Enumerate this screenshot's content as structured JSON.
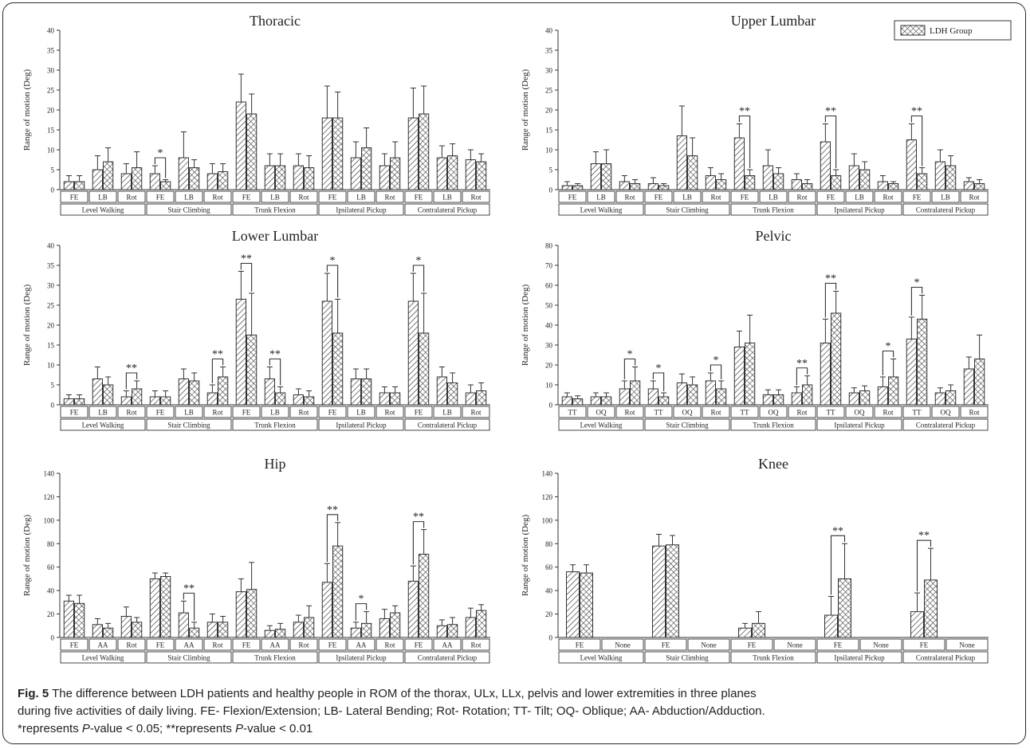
{
  "legend": {
    "label": "LDH Group"
  },
  "caption": {
    "fig_label": "Fig. 5",
    "line1": "The difference between LDH patients and healthy people in ROM of the thorax, ULx, LLx, pelvis and lower extremities in three planes",
    "line2": "during five activities of daily living. FE- Flexion/Extension; LB- Lateral Bending; Rot- Rotation; TT- Tilt; OQ- Oblique; AA- Abduction/Adduction.",
    "line3a": "*represents ",
    "line3_p1": "P",
    "line3b": "-value < 0.05; **represents ",
    "line3_p2": "P",
    "line3c": "-value < 0.01"
  },
  "chart_data": [
    {
      "type": "bar",
      "title": "Thoracic",
      "ylabel": "Range of motion (Deg)",
      "ylim": [
        0,
        40
      ],
      "yticks": [
        0,
        5,
        10,
        15,
        20,
        25,
        30,
        35,
        40
      ],
      "activities": [
        "Level Walking",
        "Stair Climbing",
        "Trunk Flexion",
        "Ipsilateral Pickup",
        "Contralateral Pickup"
      ],
      "categories": [
        "FE",
        "LB",
        "Rot",
        "FE",
        "LB",
        "Rot",
        "FE",
        "LB",
        "Rot",
        "FE",
        "LB",
        "Rot",
        "FE",
        "LB",
        "Rot"
      ],
      "series": [
        {
          "name": "",
          "values": [
            2,
            5,
            4,
            4,
            8,
            4,
            22,
            6,
            6,
            18,
            8,
            6,
            18,
            8,
            7.5
          ],
          "errors": [
            1.5,
            3.5,
            2.5,
            2,
            6.5,
            2.5,
            7,
            3,
            3,
            8,
            4,
            3,
            7.5,
            3,
            2.5
          ]
        },
        {
          "name": "LDH Group",
          "values": [
            2,
            7,
            5.5,
            2,
            5.5,
            4.5,
            19,
            6,
            5.5,
            18,
            10.5,
            8,
            19,
            8.5,
            7
          ],
          "errors": [
            1.5,
            3.5,
            4,
            0.5,
            2,
            2,
            5,
            3,
            3,
            6.5,
            5,
            4,
            7,
            3,
            2
          ]
        }
      ],
      "significance": [
        {
          "index": 3,
          "label": "*"
        }
      ]
    },
    {
      "type": "bar",
      "title": "Upper Lumbar",
      "ylabel": "Range of motion (Deg)",
      "ylim": [
        0,
        40
      ],
      "yticks": [
        0,
        5,
        10,
        15,
        20,
        25,
        30,
        35,
        40
      ],
      "activities": [
        "Level Walking",
        "Stair Climbing",
        "Trunk Flexion",
        "Ipsilateral Pickup",
        "Contralateral Pickup"
      ],
      "categories": [
        "FE",
        "LB",
        "Rot",
        "FE",
        "LB",
        "Rot",
        "FE",
        "LB",
        "Rot",
        "FE",
        "LB",
        "Rot",
        "FE",
        "LB",
        "Rot"
      ],
      "series": [
        {
          "name": "",
          "values": [
            1,
            6.5,
            2,
            1.5,
            13.5,
            3.5,
            13,
            6,
            2.5,
            12,
            6,
            2,
            12.5,
            7,
            2
          ],
          "errors": [
            1,
            3,
            1.5,
            1.5,
            7.5,
            2,
            3.5,
            4,
            1.5,
            4.5,
            3,
            1.5,
            4,
            3,
            1
          ]
        },
        {
          "name": "LDH Group",
          "values": [
            1,
            6.5,
            1.5,
            1,
            8.5,
            2.5,
            3.5,
            4,
            1.5,
            3.5,
            5,
            1.5,
            4,
            6,
            1.5
          ],
          "errors": [
            0.5,
            3.5,
            1,
            0.5,
            4.5,
            1.5,
            1.5,
            1.5,
            1,
            1.5,
            2,
            0.5,
            1.5,
            2.5,
            1
          ]
        }
      ],
      "significance": [
        {
          "index": 6,
          "label": "**"
        },
        {
          "index": 9,
          "label": "**"
        },
        {
          "index": 12,
          "label": "**"
        }
      ]
    },
    {
      "type": "bar",
      "title": "Lower Lumbar",
      "ylabel": "Range of motion (Deg)",
      "ylim": [
        0,
        40
      ],
      "yticks": [
        0,
        5,
        10,
        15,
        20,
        25,
        30,
        35,
        40
      ],
      "activities": [
        "Level Walking",
        "Stair Climbing",
        "Trunk Flexion",
        "Ipsilateral Pickup",
        "Contralateral Pickup"
      ],
      "categories": [
        "FE",
        "LB",
        "Rot",
        "FE",
        "LB",
        "Rot",
        "FE",
        "LB",
        "Rot",
        "FE",
        "LB",
        "Rot",
        "FE",
        "LB",
        "Rot"
      ],
      "series": [
        {
          "name": "",
          "values": [
            1.5,
            6.5,
            2,
            2,
            6.5,
            3,
            26.5,
            6.5,
            2.5,
            26,
            6.5,
            3,
            26,
            7,
            3
          ],
          "errors": [
            1,
            3,
            1.5,
            1.5,
            2.5,
            2,
            7,
            3,
            1.5,
            7,
            2.5,
            1.5,
            7,
            2.5,
            2
          ]
        },
        {
          "name": "LDH Group",
          "values": [
            1.5,
            5,
            4,
            2,
            6,
            7,
            17.5,
            3,
            2,
            18,
            6.5,
            3,
            18,
            5.5,
            3.5
          ],
          "errors": [
            1,
            2,
            2,
            1.5,
            2,
            2.5,
            10.5,
            1.5,
            1.5,
            8.5,
            2.5,
            1.5,
            10,
            2.5,
            2
          ]
        }
      ],
      "significance": [
        {
          "index": 2,
          "label": "**"
        },
        {
          "index": 5,
          "label": "**"
        },
        {
          "index": 6,
          "label": "**"
        },
        {
          "index": 7,
          "label": "**"
        },
        {
          "index": 9,
          "label": "*"
        },
        {
          "index": 12,
          "label": "*"
        }
      ]
    },
    {
      "type": "bar",
      "title": "Pelvic",
      "ylabel": "Range of motion (Deg)",
      "ylim": [
        0,
        80
      ],
      "yticks": [
        0,
        10,
        20,
        30,
        40,
        50,
        60,
        70,
        80
      ],
      "activities": [
        "Level Walking",
        "Stair Climbing",
        "Trunk Flexion",
        "Ipsilateral Pickup",
        "Contralateral Pickup"
      ],
      "categories": [
        "TT",
        "OQ",
        "Rot",
        "TT",
        "OQ",
        "Rot",
        "TT",
        "OQ",
        "Rot",
        "TT",
        "OQ",
        "Rot",
        "TT",
        "OQ",
        "Rot"
      ],
      "series": [
        {
          "name": "",
          "values": [
            4,
            4,
            8,
            8,
            11,
            12,
            29,
            5,
            6,
            31,
            6,
            9,
            33,
            6,
            18
          ],
          "errors": [
            2,
            2,
            4,
            4,
            4.5,
            4,
            8,
            2.5,
            3,
            12,
            2.5,
            5,
            11,
            2.5,
            6
          ]
        },
        {
          "name": "LDH Group",
          "values": [
            3,
            4,
            12,
            4,
            10,
            8,
            31,
            5,
            10,
            46,
            7,
            14,
            43,
            7,
            23
          ],
          "errors": [
            1.5,
            2,
            7,
            2,
            4,
            4,
            14,
            2.5,
            4.5,
            11,
            2.5,
            9,
            12,
            3,
            12
          ]
        }
      ],
      "significance": [
        {
          "index": 2,
          "label": "*"
        },
        {
          "index": 3,
          "label": "*"
        },
        {
          "index": 5,
          "label": "*"
        },
        {
          "index": 8,
          "label": "**"
        },
        {
          "index": 9,
          "label": "**"
        },
        {
          "index": 11,
          "label": "*"
        },
        {
          "index": 12,
          "label": "*"
        }
      ]
    },
    {
      "type": "bar",
      "title": "Hip",
      "ylabel": "Range of motion (Deg)",
      "ylim": [
        0,
        140
      ],
      "yticks": [
        0,
        20,
        40,
        60,
        80,
        100,
        120,
        140
      ],
      "activities": [
        "Level Walking",
        "Stair Climbing",
        "Trunk Flexion",
        "Ipsilateral Pickup",
        "Contralateral Pickup"
      ],
      "categories": [
        "FE",
        "AA",
        "Rot",
        "FE",
        "AA",
        "Rot",
        "FE",
        "AA",
        "Rot",
        "FE",
        "AA",
        "Rot",
        "FE",
        "AA",
        "Rot"
      ],
      "series": [
        {
          "name": "",
          "values": [
            31,
            11,
            18,
            50,
            21,
            13,
            39,
            6,
            13,
            47,
            8,
            16,
            48,
            10,
            17
          ],
          "errors": [
            5,
            5,
            8,
            5,
            10,
            7,
            11,
            4,
            6,
            16,
            5,
            8,
            13,
            5,
            8
          ]
        },
        {
          "name": "LDH Group",
          "values": [
            29,
            8,
            13,
            52,
            8,
            13,
            41,
            7,
            17,
            78,
            12,
            21,
            71,
            11,
            23
          ],
          "errors": [
            7,
            4,
            4,
            3,
            5,
            5,
            23,
            5,
            10,
            20,
            10,
            6,
            21,
            6,
            5
          ]
        }
      ],
      "significance": [
        {
          "index": 4,
          "label": "**"
        },
        {
          "index": 9,
          "label": "**"
        },
        {
          "index": 10,
          "label": "*"
        },
        {
          "index": 12,
          "label": "**"
        }
      ]
    },
    {
      "type": "bar",
      "title": "Knee",
      "ylabel": "Range of motion (Deg)",
      "ylim": [
        0,
        140
      ],
      "yticks": [
        0,
        20,
        40,
        60,
        80,
        100,
        120,
        140
      ],
      "activities": [
        "Level Walking",
        "Stair Climbing",
        "Trunk Flexion",
        "Ipsilateral Pickup",
        "Contralateral Pickup"
      ],
      "categories": [
        "FE",
        "None",
        "FE",
        "None",
        "FE",
        "None",
        "FE",
        "None",
        "FE",
        "None"
      ],
      "series": [
        {
          "name": "",
          "values": [
            56,
            null,
            78,
            null,
            8,
            null,
            19,
            null,
            22,
            null
          ],
          "errors": [
            6,
            null,
            10,
            null,
            4,
            null,
            16,
            null,
            16,
            null
          ]
        },
        {
          "name": "LDH Group",
          "values": [
            55,
            null,
            79,
            null,
            12,
            null,
            50,
            null,
            49,
            null
          ],
          "errors": [
            7,
            null,
            8,
            null,
            10,
            null,
            30,
            null,
            27,
            null
          ]
        }
      ],
      "significance": [
        {
          "index": 6,
          "label": "**"
        },
        {
          "index": 8,
          "label": "**"
        }
      ]
    }
  ]
}
